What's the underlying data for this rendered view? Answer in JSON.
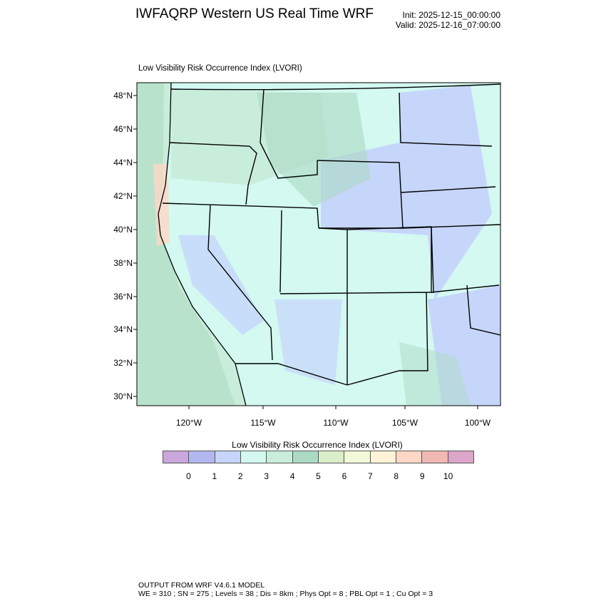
{
  "header": {
    "title": "IWFAQRP Western US Real Time WRF",
    "init": "Init: 2025-12-15_00:00:00",
    "valid": "Valid: 2025-12-16_07:00:00"
  },
  "plot": {
    "subtitle": "Low Visibility Risk Occurrence Index   (LVORI)",
    "lat_labels": [
      "48°N",
      "46°N",
      "44°N",
      "42°N",
      "40°N",
      "38°N",
      "36°N",
      "34°N",
      "32°N",
      "30°N"
    ],
    "lon_labels": [
      "120°W",
      "115°W",
      "110°W",
      "105°W",
      "100°W"
    ]
  },
  "colorbar": {
    "title": "Low Visibility Risk Occurrence Index  (LVORI)",
    "labels": [
      "0",
      "1",
      "2",
      "3",
      "4",
      "5",
      "6",
      "7",
      "8",
      "9",
      "10"
    ],
    "colors": [
      "#c9a7dc",
      "#b3b7ef",
      "#c6d6fb",
      "#d3f9f1",
      "#c9eddb",
      "#abd9c3",
      "#daedc9",
      "#f2f9d9",
      "#fff3d7",
      "#fed7c5",
      "#f1b7b3",
      "#dca5c9"
    ]
  },
  "footer": {
    "line1": "OUTPUT FROM WRF V4.6.1 MODEL",
    "line2": "WE = 310 ; SN = 275 ; Levels = 38 ; Dis = 8km ; Phys Opt = 8 ; PBL Opt = 1 ; Cu Opt = 3"
  }
}
